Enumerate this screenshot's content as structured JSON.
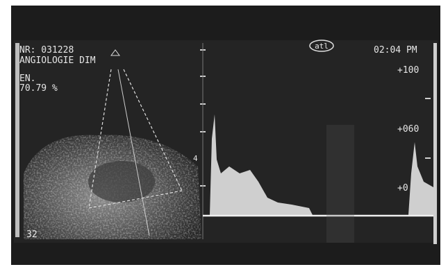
{
  "screen": {
    "patient_id": "NR: 031228",
    "study": "ANGIOLOGIE DIM",
    "en_label": "EN.",
    "en_value": "70.79 %",
    "logo": "atl",
    "time": "02:04 PM",
    "scale": [
      "+100",
      "+060",
      "+0"
    ],
    "marker": "4",
    "depth": "32"
  }
}
